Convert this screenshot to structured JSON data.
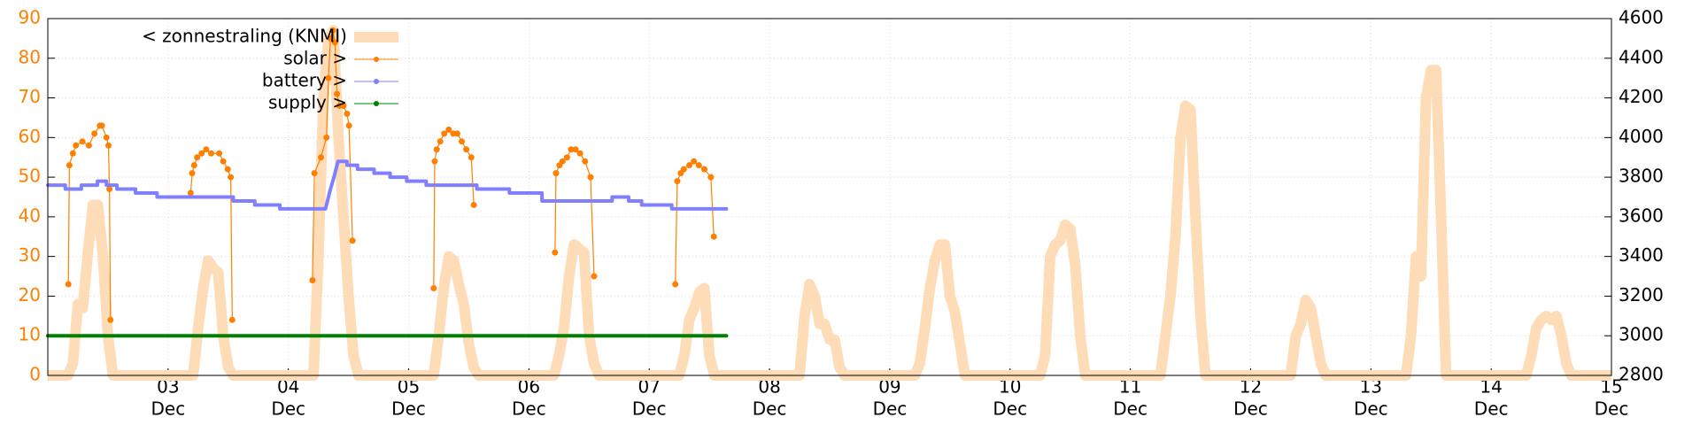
{
  "chart_data": {
    "type": "line",
    "xlim": [
      0,
      312
    ],
    "xticks": [
      {
        "value": 24,
        "label": [
          "03",
          "Dec"
        ]
      },
      {
        "value": 48,
        "label": [
          "04",
          "Dec"
        ]
      },
      {
        "value": 72,
        "label": [
          "05",
          "Dec"
        ]
      },
      {
        "value": 96,
        "label": [
          "06",
          "Dec"
        ]
      },
      {
        "value": 120,
        "label": [
          "07",
          "Dec"
        ]
      },
      {
        "value": 144,
        "label": [
          "08",
          "Dec"
        ]
      },
      {
        "value": 168,
        "label": [
          "09",
          "Dec"
        ]
      },
      {
        "value": 192,
        "label": [
          "10",
          "Dec"
        ]
      },
      {
        "value": 216,
        "label": [
          "11",
          "Dec"
        ]
      },
      {
        "value": 240,
        "label": [
          "12",
          "Dec"
        ]
      },
      {
        "value": 264,
        "label": [
          "13",
          "Dec"
        ]
      },
      {
        "value": 288,
        "label": [
          "14",
          "Dec"
        ]
      },
      {
        "value": 312,
        "label": [
          "15",
          "Dec"
        ]
      }
    ],
    "ylim": [
      0,
      90
    ],
    "yticks": [
      0,
      10,
      20,
      30,
      40,
      50,
      60,
      70,
      80,
      90
    ],
    "y2lim": [
      2800,
      4600
    ],
    "y2ticks": [
      2800,
      3000,
      3200,
      3400,
      3600,
      3800,
      4000,
      4200,
      4400,
      4600
    ],
    "grid": true,
    "legend": "upper left",
    "series": [
      {
        "name": "< zonnestraling (KNMI)",
        "color": "#ffdcb8",
        "style": "lines",
        "x": [
          0,
          4,
          5,
          6,
          7,
          8,
          9,
          10,
          11,
          12,
          13,
          29,
          30,
          31,
          32,
          33,
          34,
          35,
          36,
          37,
          53,
          54,
          55,
          56,
          57,
          58,
          59,
          60,
          61,
          62,
          77,
          78,
          79,
          80,
          81,
          82,
          83,
          84,
          85,
          86,
          101,
          102,
          103,
          104,
          105,
          106,
          107,
          108,
          109,
          110,
          126,
          127,
          128,
          129,
          130,
          131,
          132,
          133,
          150,
          151,
          152,
          153,
          154,
          155,
          156,
          157,
          158,
          159,
          173,
          174,
          175,
          176,
          177,
          178,
          179,
          180,
          181,
          182,
          183,
          198,
          199,
          200,
          201,
          202,
          203,
          204,
          205,
          206,
          207,
          222,
          223,
          224,
          225,
          226,
          227,
          228,
          229,
          230,
          231,
          248,
          249,
          250,
          251,
          252,
          253,
          254,
          255,
          271,
          272,
          273,
          274,
          275,
          276,
          277,
          278,
          279,
          295,
          296,
          297,
          298,
          299,
          300,
          301,
          302,
          303,
          304,
          312
        ],
        "values": [
          0,
          0,
          3,
          18,
          17,
          31,
          43,
          43,
          30,
          10,
          0,
          0,
          12,
          22,
          29,
          27,
          26,
          10,
          2,
          0,
          0,
          30,
          70,
          85,
          87,
          60,
          40,
          20,
          5,
          0,
          0,
          10,
          22,
          30,
          29,
          23,
          18,
          8,
          2,
          0,
          0,
          5,
          12,
          25,
          33,
          32,
          31,
          10,
          3,
          0,
          0,
          5,
          14,
          17,
          21,
          22,
          5,
          0,
          0,
          15,
          23,
          20,
          13,
          13,
          9,
          9,
          2,
          0,
          0,
          3,
          12,
          22,
          29,
          33,
          33,
          20,
          16,
          8,
          0,
          0,
          5,
          30,
          33,
          34,
          38,
          37,
          28,
          10,
          0,
          0,
          10,
          20,
          35,
          60,
          68,
          67,
          40,
          15,
          0,
          0,
          10,
          13,
          19,
          17,
          10,
          3,
          0,
          0,
          10,
          30,
          25,
          70,
          77,
          77,
          40,
          0,
          0,
          5,
          12,
          14,
          15,
          14,
          15,
          10,
          3,
          0,
          0
        ]
      },
      {
        "name": "solar >",
        "color": "#ff8000",
        "style": "linespoints",
        "axis": "y2",
        "x": [
          4.1,
          4.3,
          5.0,
          5.6,
          6.9,
          8.2,
          9.3,
          10.4,
          10.8,
          11.7,
          12.1,
          12.3,
          12.5,
          null,
          28.5,
          28.8,
          29.2,
          29.8,
          30.7,
          31.6,
          32.6,
          34.2,
          35.0,
          35.9,
          36.5,
          36.8,
          null,
          52.8,
          53.2,
          54.5,
          55.6,
          56.0,
          56.4,
          56.9,
          57.3,
          57.7,
          58.2,
          59.0,
          59.7,
          60.1,
          60.8,
          null,
          77.0,
          77.2,
          77.6,
          78.3,
          79.1,
          80.0,
          80.9,
          81.7,
          82.6,
          83.5,
          84.5,
          85.0,
          null,
          101.2,
          101.4,
          102.1,
          102.7,
          103.6,
          104.4,
          105.3,
          106.2,
          107.2,
          108.3,
          109.0,
          null,
          125.2,
          125.6,
          126.3,
          126.9,
          128.0,
          128.9,
          129.9,
          131.0,
          132.3,
          132.9
        ],
        "values": [
          3260,
          3860,
          3920,
          3960,
          3980,
          3960,
          4020,
          4060,
          4060,
          4000,
          3960,
          3740,
          3080,
          null,
          3720,
          3820,
          3860,
          3900,
          3920,
          3940,
          3920,
          3920,
          3880,
          3840,
          3800,
          3080,
          null,
          3280,
          3820,
          3900,
          4000,
          4300,
          4500,
          4540,
          4480,
          4220,
          4160,
          4160,
          4120,
          4060,
          3480,
          null,
          3240,
          3880,
          3940,
          3980,
          4020,
          4040,
          4020,
          4020,
          3980,
          3940,
          3900,
          3660,
          null,
          3420,
          3820,
          3860,
          3880,
          3900,
          3940,
          3940,
          3920,
          3880,
          3800,
          3300,
          null,
          3260,
          3780,
          3820,
          3840,
          3860,
          3880,
          3860,
          3840,
          3800,
          3500
        ]
      },
      {
        "name": "battery >",
        "color": "#8080ff",
        "style": "points",
        "axis": "y2",
        "x": [
          0,
          3.5,
          3.5,
          6.7,
          6.7,
          9.9,
          9.9,
          11.7,
          11.7,
          13.8,
          13.8,
          17.5,
          17.5,
          21.8,
          21.8,
          37.0,
          37.0,
          41.3,
          41.3,
          46.3,
          46.3,
          55.4,
          56.0,
          56.4,
          57.1,
          57.9,
          59.7,
          59.7,
          61.8,
          61.8,
          65.1,
          65.1,
          68.3,
          68.3,
          71.6,
          71.6,
          75.5,
          75.5,
          85.6,
          85.6,
          92.1,
          92.1,
          98.6,
          98.6,
          112.6,
          112.6,
          115.9,
          115.9,
          118.5,
          118.5,
          124.5,
          124.5,
          135.4
        ],
        "values": [
          3760,
          3760,
          3740,
          3740,
          3760,
          3760,
          3780,
          3780,
          3760,
          3760,
          3740,
          3740,
          3720,
          3720,
          3700,
          3700,
          3680,
          3680,
          3660,
          3660,
          3640,
          3640,
          3700,
          3740,
          3800,
          3880,
          3880,
          3860,
          3860,
          3840,
          3840,
          3820,
          3820,
          3800,
          3800,
          3780,
          3780,
          3760,
          3760,
          3740,
          3740,
          3720,
          3720,
          3680,
          3680,
          3700,
          3700,
          3680,
          3680,
          3660,
          3660,
          3640,
          3640
        ]
      },
      {
        "name": "supply >",
        "color": "#008000",
        "style": "points",
        "axis": "y2",
        "x": [
          0,
          135.4
        ],
        "values": [
          3000,
          3000
        ]
      }
    ]
  }
}
